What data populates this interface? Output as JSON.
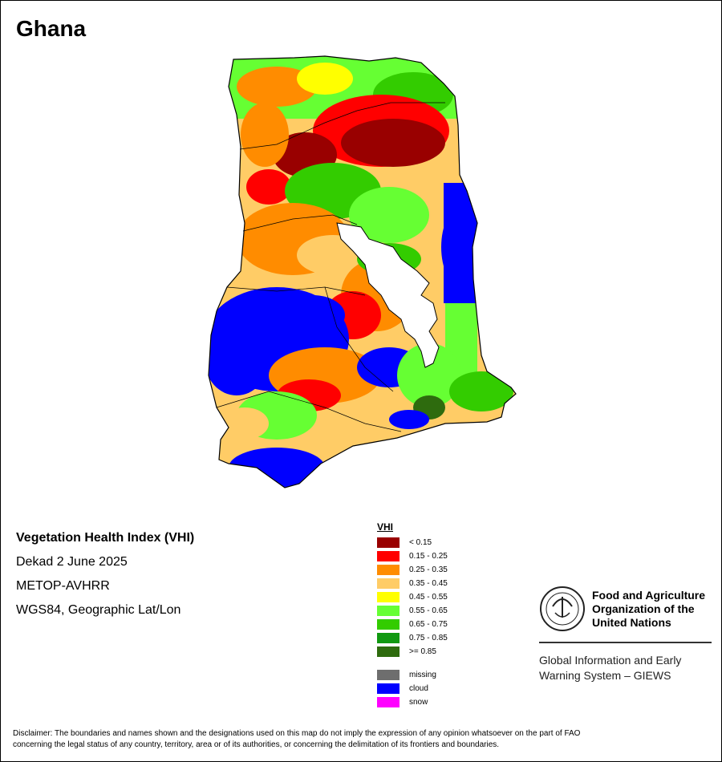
{
  "title": "Ghana",
  "product": {
    "index_name": "Vegetation Health Index (VHI)",
    "period": "Dekad 2 June 2025",
    "sensor": "METOP-AVHRR",
    "projection": "WGS84, Geographic Lat/Lon"
  },
  "legend": {
    "title": "VHI",
    "classes": [
      {
        "label": "< 0.15",
        "color": "#990000"
      },
      {
        "label": "0.15 - 0.25",
        "color": "#ff0000"
      },
      {
        "label": "0.25 - 0.35",
        "color": "#ff8c00"
      },
      {
        "label": "0.35 - 0.45",
        "color": "#ffcc66"
      },
      {
        "label": "0.45 - 0.55",
        "color": "#ffff00"
      },
      {
        "label": "0.55 - 0.65",
        "color": "#66ff33"
      },
      {
        "label": "0.65 - 0.75",
        "color": "#33cc00"
      },
      {
        "label": "0.75 - 0.85",
        "color": "#119911"
      },
      {
        "label": ">= 0.85",
        "color": "#2e6b0e"
      }
    ],
    "special": [
      {
        "label": "missing",
        "color": "#6e6e6e"
      },
      {
        "label": "cloud",
        "color": "#0000ff"
      },
      {
        "label": "snow",
        "color": "#ff00ff"
      }
    ]
  },
  "organization": {
    "name_lines": [
      "Food and Agriculture",
      "Organization of the",
      "United Nations"
    ],
    "system_lines": [
      "Global Information and Early",
      "Warning System – GIEWS"
    ]
  },
  "disclaimer_lines": [
    "Disclaimer: The boundaries and names shown and the designations used on this map do not imply the expression of any opinion whatsoever on the part of FAO",
    "concerning the legal status of any country, territory, area or of its authorities, or concerning the delimitation of its frontiers and boundaries."
  ]
}
